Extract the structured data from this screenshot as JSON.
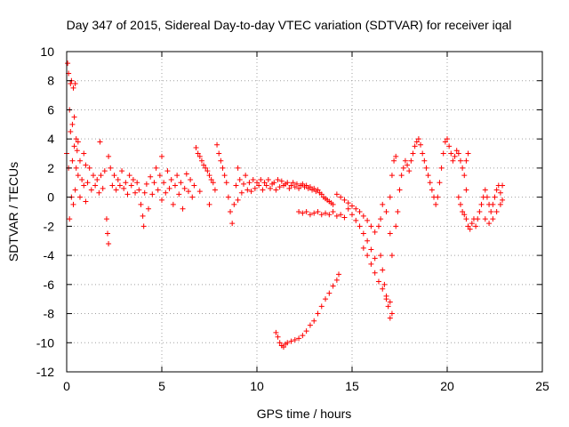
{
  "chart_data": {
    "type": "scatter",
    "title": "Day 347 of 2015, Sidereal Day-to-day VTEC variation (SDTVAR) for receiver iqal",
    "xlabel": "GPS time / hours",
    "ylabel": "SDTVAR / TECUs",
    "xlim": [
      0,
      25
    ],
    "ylim": [
      -12,
      10
    ],
    "xticks": [
      0,
      5,
      10,
      15,
      20,
      25
    ],
    "yticks": [
      -12,
      -10,
      -8,
      -6,
      -4,
      -2,
      0,
      2,
      4,
      6,
      8,
      10
    ],
    "xtick_labels": [
      "0",
      "5",
      "10",
      "15",
      "20",
      "25"
    ],
    "ytick_labels": [
      "-12",
      "-10",
      "-8",
      "-6",
      "-4",
      "-2",
      "0",
      "2",
      "4",
      "6",
      "8",
      "10"
    ],
    "grid": true,
    "marker": "+",
    "color": "#ff0000",
    "series": [
      {
        "name": "SDTVAR",
        "points": [
          [
            0.0,
            3.0
          ],
          [
            0.05,
            9.2
          ],
          [
            0.1,
            8.5
          ],
          [
            0.1,
            2.0
          ],
          [
            0.15,
            6.0
          ],
          [
            0.15,
            -1.5
          ],
          [
            0.2,
            7.8
          ],
          [
            0.2,
            4.5
          ],
          [
            0.25,
            8.0
          ],
          [
            0.25,
            0.0
          ],
          [
            0.3,
            5.0
          ],
          [
            0.3,
            2.5
          ],
          [
            0.35,
            7.5
          ],
          [
            0.35,
            -0.5
          ],
          [
            0.4,
            3.5
          ],
          [
            0.4,
            5.5
          ],
          [
            0.45,
            7.8
          ],
          [
            0.45,
            0.5
          ],
          [
            0.5,
            2.0
          ],
          [
            0.5,
            4.0
          ],
          [
            0.55,
            3.2
          ],
          [
            0.6,
            1.5
          ],
          [
            0.6,
            3.8
          ],
          [
            0.7,
            2.5
          ],
          [
            0.7,
            0.0
          ],
          [
            0.8,
            1.2
          ],
          [
            0.9,
            3.0
          ],
          [
            0.9,
            0.8
          ],
          [
            1.0,
            2.2
          ],
          [
            1.0,
            -0.3
          ],
          [
            1.1,
            1.0
          ],
          [
            1.2,
            2.0
          ],
          [
            1.3,
            0.5
          ],
          [
            1.4,
            1.5
          ],
          [
            1.5,
            0.8
          ],
          [
            1.6,
            1.2
          ],
          [
            1.7,
            0.3
          ],
          [
            1.75,
            3.8
          ],
          [
            1.8,
            1.5
          ],
          [
            1.9,
            0.6
          ],
          [
            2.0,
            1.8
          ],
          [
            2.1,
            -1.5
          ],
          [
            2.15,
            -2.5
          ],
          [
            2.2,
            -3.2
          ],
          [
            2.2,
            2.8
          ],
          [
            2.3,
            2.0
          ],
          [
            2.4,
            0.8
          ],
          [
            2.5,
            1.5
          ],
          [
            2.6,
            0.5
          ],
          [
            2.7,
            1.2
          ],
          [
            2.8,
            0.8
          ],
          [
            2.9,
            1.8
          ],
          [
            3.0,
            0.6
          ],
          [
            3.1,
            1.0
          ],
          [
            3.2,
            0.2
          ],
          [
            3.3,
            1.5
          ],
          [
            3.4,
            0.8
          ],
          [
            3.5,
            1.2
          ],
          [
            3.6,
            0.3
          ],
          [
            3.7,
            1.0
          ],
          [
            3.8,
            0.5
          ],
          [
            3.9,
            -0.5
          ],
          [
            4.0,
            -1.3
          ],
          [
            4.05,
            -2.0
          ],
          [
            4.1,
            0.3
          ],
          [
            4.2,
            0.9
          ],
          [
            4.3,
            -0.8
          ],
          [
            4.4,
            1.4
          ],
          [
            4.5,
            0.2
          ],
          [
            4.6,
            1.0
          ],
          [
            4.7,
            2.0
          ],
          [
            4.8,
            0.5
          ],
          [
            4.9,
            1.5
          ],
          [
            5.0,
            2.8
          ],
          [
            5.0,
            -0.2
          ],
          [
            5.1,
            1.0
          ],
          [
            5.2,
            0.3
          ],
          [
            5.3,
            1.8
          ],
          [
            5.4,
            0.6
          ],
          [
            5.5,
            1.2
          ],
          [
            5.6,
            -0.5
          ],
          [
            5.7,
            0.8
          ],
          [
            5.8,
            1.5
          ],
          [
            5.9,
            0.2
          ],
          [
            6.0,
            1.0
          ],
          [
            6.1,
            -0.8
          ],
          [
            6.2,
            0.6
          ],
          [
            6.3,
            1.6
          ],
          [
            6.4,
            0.4
          ],
          [
            6.5,
            1.2
          ],
          [
            6.6,
            0.0
          ],
          [
            6.7,
            0.8
          ],
          [
            6.8,
            3.4
          ],
          [
            6.9,
            3.0
          ],
          [
            7.0,
            2.8
          ],
          [
            7.0,
            0.4
          ],
          [
            7.1,
            2.5
          ],
          [
            7.2,
            2.2
          ],
          [
            7.3,
            2.0
          ],
          [
            7.4,
            1.8
          ],
          [
            7.5,
            1.5
          ],
          [
            7.5,
            -0.5
          ],
          [
            7.6,
            1.2
          ],
          [
            7.7,
            1.0
          ],
          [
            7.8,
            0.5
          ],
          [
            7.9,
            3.6
          ],
          [
            8.0,
            3.0
          ],
          [
            8.1,
            2.5
          ],
          [
            8.2,
            2.0
          ],
          [
            8.3,
            1.5
          ],
          [
            8.4,
            1.0
          ],
          [
            8.5,
            0.0
          ],
          [
            8.6,
            -1.0
          ],
          [
            8.7,
            -1.8
          ],
          [
            8.8,
            -0.5
          ],
          [
            8.9,
            0.8
          ],
          [
            9.0,
            -0.2
          ],
          [
            9.0,
            2.0
          ],
          [
            9.1,
            1.2
          ],
          [
            9.2,
            0.3
          ],
          [
            9.3,
            0.9
          ],
          [
            9.4,
            1.5
          ],
          [
            9.5,
            0.5
          ],
          [
            9.6,
            1.0
          ],
          [
            9.7,
            0.4
          ],
          [
            9.8,
            1.2
          ],
          [
            9.9,
            0.6
          ],
          [
            10.0,
            1.0
          ],
          [
            10.1,
            0.8
          ],
          [
            10.2,
            1.2
          ],
          [
            10.3,
            0.5
          ],
          [
            10.4,
            1.0
          ],
          [
            10.5,
            0.8
          ],
          [
            10.6,
            1.2
          ],
          [
            10.7,
            0.6
          ],
          [
            10.8,
            0.9
          ],
          [
            10.9,
            1.0
          ],
          [
            11.0,
            0.5
          ],
          [
            11.1,
            1.2
          ],
          [
            11.2,
            0.7
          ],
          [
            11.3,
            1.1
          ],
          [
            11.4,
            0.8
          ],
          [
            11.5,
            0.9
          ],
          [
            11.6,
            1.0
          ],
          [
            11.7,
            0.6
          ],
          [
            11.8,
            0.8
          ],
          [
            11.9,
            1.0
          ],
          [
            12.0,
            0.7
          ],
          [
            12.1,
            0.9
          ],
          [
            12.2,
            0.6
          ],
          [
            12.3,
            0.8
          ],
          [
            12.4,
            0.9
          ],
          [
            12.5,
            0.7
          ],
          [
            12.6,
            0.8
          ],
          [
            12.7,
            0.6
          ],
          [
            12.8,
            0.7
          ],
          [
            12.9,
            0.5
          ],
          [
            13.0,
            0.6
          ],
          [
            13.1,
            0.4
          ],
          [
            13.2,
            0.5
          ],
          [
            13.3,
            0.3
          ],
          [
            13.4,
            0.2
          ],
          [
            13.5,
            0.0
          ],
          [
            13.6,
            -0.1
          ],
          [
            13.7,
            -0.2
          ],
          [
            13.8,
            -0.3
          ],
          [
            13.9,
            -0.4
          ],
          [
            14.0,
            -0.5
          ],
          [
            12.2,
            -1.0
          ],
          [
            12.4,
            -1.1
          ],
          [
            12.6,
            -1.0
          ],
          [
            12.8,
            -1.2
          ],
          [
            13.0,
            -1.1
          ],
          [
            13.2,
            -1.0
          ],
          [
            13.4,
            -1.2
          ],
          [
            13.6,
            -1.1
          ],
          [
            13.8,
            -1.2
          ],
          [
            14.0,
            -1.0
          ],
          [
            14.2,
            -1.3
          ],
          [
            14.4,
            -1.2
          ],
          [
            14.6,
            -1.4
          ],
          [
            14.2,
            0.2
          ],
          [
            14.4,
            0.0
          ],
          [
            14.6,
            -0.2
          ],
          [
            14.8,
            -0.4
          ],
          [
            15.0,
            -0.6
          ],
          [
            15.2,
            -0.8
          ],
          [
            15.4,
            -1.0
          ],
          [
            15.6,
            -1.3
          ],
          [
            15.8,
            -1.6
          ],
          [
            16.0,
            -2.0
          ],
          [
            16.2,
            -2.4
          ],
          [
            14.8,
            -0.8
          ],
          [
            15.0,
            -1.2
          ],
          [
            15.2,
            -1.6
          ],
          [
            15.4,
            -2.0
          ],
          [
            15.6,
            -2.5
          ],
          [
            15.8,
            -3.0
          ],
          [
            16.0,
            -3.6
          ],
          [
            16.2,
            -4.2
          ],
          [
            15.6,
            -3.5
          ],
          [
            15.8,
            -4.0
          ],
          [
            16.0,
            -4.6
          ],
          [
            16.2,
            -5.2
          ],
          [
            16.4,
            -5.8
          ],
          [
            16.6,
            -6.3
          ],
          [
            16.8,
            -6.8
          ],
          [
            17.0,
            -7.2
          ],
          [
            17.1,
            -8.0
          ],
          [
            17.0,
            -8.3
          ],
          [
            16.5,
            -4.0
          ],
          [
            16.6,
            -5.0
          ],
          [
            16.7,
            -6.0
          ],
          [
            16.8,
            -7.0
          ],
          [
            16.9,
            -7.5
          ],
          [
            11.0,
            -9.3
          ],
          [
            11.1,
            -9.6
          ],
          [
            11.2,
            -10.0
          ],
          [
            11.3,
            -10.2
          ],
          [
            11.4,
            -10.3
          ],
          [
            11.5,
            -10.1
          ],
          [
            11.6,
            -10.0
          ],
          [
            11.8,
            -9.9
          ],
          [
            12.0,
            -9.8
          ],
          [
            12.2,
            -9.7
          ],
          [
            12.4,
            -9.5
          ],
          [
            12.6,
            -9.2
          ],
          [
            12.8,
            -8.8
          ],
          [
            13.0,
            -8.5
          ],
          [
            13.2,
            -8.0
          ],
          [
            13.4,
            -7.5
          ],
          [
            13.6,
            -7.0
          ],
          [
            13.8,
            -6.6
          ],
          [
            14.0,
            -6.1
          ],
          [
            14.2,
            -5.7
          ],
          [
            14.3,
            -5.3
          ],
          [
            16.4,
            -2.0
          ],
          [
            16.5,
            -1.5
          ],
          [
            16.6,
            -0.5
          ],
          [
            16.8,
            -1.0
          ],
          [
            17.0,
            0.0
          ],
          [
            17.1,
            1.5
          ],
          [
            17.2,
            2.5
          ],
          [
            17.3,
            2.8
          ],
          [
            17.0,
            -2.5
          ],
          [
            17.1,
            -4.0
          ],
          [
            17.3,
            -2.0
          ],
          [
            17.4,
            -1.0
          ],
          [
            17.5,
            0.5
          ],
          [
            17.6,
            1.5
          ],
          [
            17.7,
            2.0
          ],
          [
            17.8,
            2.5
          ],
          [
            17.9,
            2.2
          ],
          [
            18.0,
            1.8
          ],
          [
            18.1,
            2.5
          ],
          [
            18.2,
            3.0
          ],
          [
            18.3,
            3.5
          ],
          [
            18.4,
            3.8
          ],
          [
            18.5,
            4.0
          ],
          [
            18.6,
            3.6
          ],
          [
            18.7,
            3.0
          ],
          [
            18.8,
            2.5
          ],
          [
            18.9,
            2.0
          ],
          [
            19.0,
            1.5
          ],
          [
            19.1,
            1.0
          ],
          [
            19.2,
            0.5
          ],
          [
            19.3,
            0.0
          ],
          [
            19.4,
            -0.5
          ],
          [
            19.5,
            0.0
          ],
          [
            19.6,
            1.0
          ],
          [
            19.7,
            2.0
          ],
          [
            19.8,
            3.0
          ],
          [
            19.9,
            3.8
          ],
          [
            20.0,
            4.0
          ],
          [
            20.1,
            3.5
          ],
          [
            20.2,
            3.0
          ],
          [
            20.3,
            2.5
          ],
          [
            20.4,
            2.8
          ],
          [
            20.5,
            3.2
          ],
          [
            20.6,
            3.0
          ],
          [
            20.7,
            2.5
          ],
          [
            20.8,
            2.0
          ],
          [
            20.9,
            1.5
          ],
          [
            21.0,
            2.5
          ],
          [
            21.1,
            3.0
          ],
          [
            21.0,
            0.5
          ],
          [
            20.6,
            0.0
          ],
          [
            20.7,
            -0.5
          ],
          [
            20.8,
            -1.0
          ],
          [
            20.9,
            -1.2
          ],
          [
            21.0,
            -1.5
          ],
          [
            21.1,
            -2.0
          ],
          [
            21.2,
            -2.2
          ],
          [
            21.3,
            -1.8
          ],
          [
            21.4,
            -1.5
          ],
          [
            21.5,
            -2.0
          ],
          [
            21.6,
            -1.5
          ],
          [
            21.7,
            -1.0
          ],
          [
            21.8,
            -0.5
          ],
          [
            21.9,
            0.0
          ],
          [
            22.0,
            0.5
          ],
          [
            22.1,
            0.0
          ],
          [
            22.2,
            -0.5
          ],
          [
            22.3,
            -1.0
          ],
          [
            22.4,
            -0.5
          ],
          [
            22.5,
            0.0
          ],
          [
            22.6,
            0.5
          ],
          [
            22.7,
            0.8
          ],
          [
            22.8,
            0.3
          ],
          [
            22.9,
            -0.2
          ],
          [
            22.9,
            0.8
          ],
          [
            22.0,
            -1.5
          ],
          [
            22.2,
            -1.8
          ],
          [
            22.4,
            -1.5
          ],
          [
            22.6,
            -1.0
          ],
          [
            22.8,
            -0.5
          ]
        ]
      }
    ]
  }
}
